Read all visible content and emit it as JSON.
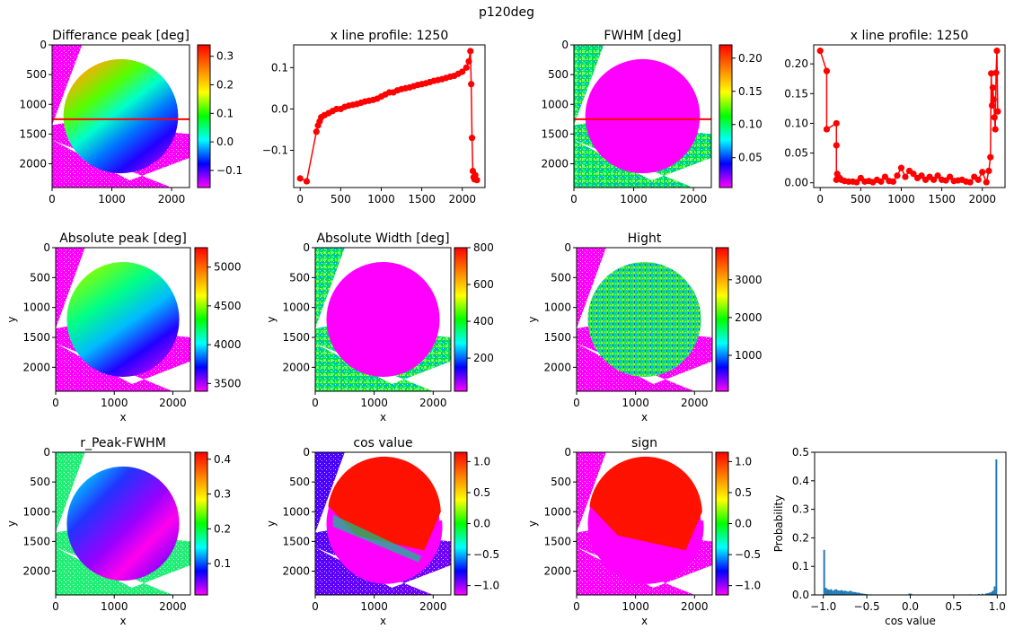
{
  "suptitle": "p120deg",
  "chart_data": [
    {
      "type": "heatmap",
      "title": "Differance peak [deg]",
      "xlabel": "",
      "ylabel": "",
      "xticks": [
        "0",
        "1000",
        "2000"
      ],
      "yticks": [
        "0",
        "500",
        "1000",
        "1500",
        "2000"
      ],
      "cbar_ticks": [
        "0.3",
        "0.2",
        "0.1",
        "0.0",
        "−0.1"
      ],
      "cbar_range": [
        -0.16,
        0.34
      ],
      "marker_row": 1250
    },
    {
      "type": "line",
      "title": "x line profile: 1250",
      "xlabel": "",
      "ylabel": "",
      "xticks": [
        "0",
        "500",
        "1000",
        "1500",
        "2000"
      ],
      "yticks": [
        "0.1",
        "0.0",
        "−0.1"
      ],
      "xlim": [
        -80,
        2280
      ],
      "ylim": [
        -0.19,
        0.155
      ],
      "x": [
        0,
        80,
        200,
        220,
        240,
        260,
        300,
        350,
        400,
        450,
        500,
        550,
        600,
        650,
        700,
        750,
        800,
        850,
        900,
        950,
        1000,
        1050,
        1100,
        1150,
        1200,
        1250,
        1300,
        1350,
        1400,
        1450,
        1500,
        1550,
        1600,
        1650,
        1700,
        1750,
        1800,
        1850,
        1900,
        1950,
        2000,
        2050,
        2080,
        2100,
        2110,
        2120,
        2130,
        2140,
        2150,
        2160,
        2180
      ],
      "y": [
        -0.168,
        -0.175,
        -0.055,
        -0.04,
        -0.03,
        -0.02,
        -0.015,
        -0.01,
        -0.005,
        0.0,
        0.0,
        0.005,
        0.008,
        0.01,
        0.012,
        0.015,
        0.018,
        0.02,
        0.022,
        0.025,
        0.03,
        0.035,
        0.04,
        0.04,
        0.045,
        0.048,
        0.05,
        0.052,
        0.055,
        0.058,
        0.06,
        0.062,
        0.065,
        0.068,
        0.07,
        0.072,
        0.075,
        0.078,
        0.08,
        0.085,
        0.09,
        0.1,
        0.115,
        0.14,
        0.06,
        -0.07,
        -0.15,
        -0.165,
        -0.17,
        -0.16,
        -0.172
      ]
    },
    {
      "type": "heatmap",
      "title": "FWHM [deg]",
      "xlabel": "",
      "ylabel": "",
      "xticks": [
        "0",
        "1000",
        "2000"
      ],
      "yticks": [
        "0",
        "500",
        "1000",
        "1500",
        "2000"
      ],
      "cbar_ticks": [
        "0.20",
        "0.15",
        "0.10",
        "0.05"
      ],
      "cbar_range": [
        0.005,
        0.22
      ],
      "marker_row": 1250
    },
    {
      "type": "scatter",
      "title": "x line profile: 1250",
      "xlabel": "",
      "ylabel": "",
      "xticks": [
        "0",
        "500",
        "1000",
        "1500",
        "2000"
      ],
      "yticks": [
        "0.20",
        "0.15",
        "0.10",
        "0.05",
        "0.00"
      ],
      "xlim": [
        -80,
        2280
      ],
      "ylim": [
        -0.008,
        0.232
      ],
      "x": [
        0,
        80,
        80,
        200,
        200,
        200,
        210,
        220,
        240,
        260,
        300,
        350,
        400,
        450,
        500,
        550,
        600,
        650,
        700,
        750,
        800,
        850,
        900,
        950,
        1000,
        1050,
        1100,
        1150,
        1200,
        1250,
        1300,
        1350,
        1400,
        1450,
        1500,
        1550,
        1600,
        1650,
        1700,
        1750,
        1800,
        1850,
        1900,
        1950,
        2000,
        2050,
        2080,
        2100,
        2110,
        2120,
        2130,
        2140,
        2150,
        2160,
        2170,
        2180,
        2190
      ],
      "y": [
        0.222,
        0.188,
        0.09,
        0.1,
        0.063,
        0.005,
        0.015,
        0.01,
        0.008,
        0.005,
        0.003,
        0.002,
        0.002,
        0.001,
        0.008,
        0.002,
        0.003,
        0.001,
        0.005,
        0.002,
        0.01,
        0.003,
        0.002,
        0.012,
        0.025,
        0.01,
        0.02,
        0.015,
        0.008,
        0.012,
        0.005,
        0.01,
        0.005,
        0.012,
        0.005,
        0.004,
        0.01,
        0.003,
        0.004,
        0.005,
        0.002,
        0.001,
        0.01,
        0.005,
        0.018,
        0.001,
        0.02,
        0.043,
        0.184,
        0.13,
        0.16,
        0.14,
        0.11,
        0.09,
        0.185,
        0.222,
        0.12
      ]
    },
    {
      "type": "heatmap",
      "title": "Absolute peak [deg]",
      "xlabel": "x",
      "ylabel": "y",
      "xticks": [
        "0",
        "1000",
        "2000"
      ],
      "yticks": [
        "0",
        "500",
        "1000",
        "1500",
        "2000"
      ],
      "cbar_ticks": [
        "5000",
        "4500",
        "4000",
        "3500"
      ],
      "cbar_range": [
        3400,
        5250
      ]
    },
    {
      "type": "heatmap",
      "title": "Absolute Width [deg]",
      "xlabel": "x",
      "ylabel": "y",
      "xticks": [
        "0",
        "1000",
        "2000"
      ],
      "yticks": [
        "0",
        "500",
        "1000",
        "1500",
        "2000"
      ],
      "cbar_ticks": [
        "800",
        "600",
        "400",
        "200"
      ],
      "cbar_range": [
        20,
        800
      ]
    },
    {
      "type": "heatmap",
      "title": "Hight",
      "xlabel": "x",
      "ylabel": "y",
      "xticks": [
        "0",
        "1000",
        "2000"
      ],
      "yticks": [
        "0",
        "500",
        "1000",
        "1500",
        "2000"
      ],
      "cbar_ticks": [
        "3000",
        "2000",
        "1000"
      ],
      "cbar_range": [
        50,
        3850
      ]
    },
    {
      "type": "heatmap",
      "title": "r_Peak-FWHM",
      "xlabel": "x",
      "ylabel": "y",
      "xticks": [
        "0",
        "1000",
        "2000"
      ],
      "yticks": [
        "0",
        "500",
        "1000",
        "1500",
        "2000"
      ],
      "cbar_ticks": [
        "0.4",
        "0.3",
        "0.2",
        "0.1"
      ],
      "cbar_range": [
        0.01,
        0.42
      ]
    },
    {
      "type": "heatmap",
      "title": "cos value",
      "xlabel": "x",
      "ylabel": "y",
      "xticks": [
        "0",
        "1000",
        "2000"
      ],
      "yticks": [
        "0",
        "500",
        "1000",
        "1500",
        "2000"
      ],
      "cbar_ticks": [
        "1.0",
        "0.5",
        "0.0",
        "−0.5",
        "−1.0"
      ],
      "cbar_range": [
        -1.15,
        1.15
      ]
    },
    {
      "type": "heatmap",
      "title": "sign",
      "xlabel": "x",
      "ylabel": "y",
      "xticks": [
        "0",
        "1000",
        "2000"
      ],
      "yticks": [
        "0",
        "500",
        "1000",
        "1500",
        "2000"
      ],
      "cbar_ticks": [
        "1.0",
        "0.5",
        "0.0",
        "−0.5",
        "−1.0"
      ],
      "cbar_range": [
        -1.15,
        1.15
      ]
    },
    {
      "type": "bar",
      "title": "",
      "xlabel": "cos value",
      "ylabel": "Probability",
      "xticks": [
        "−1.0",
        "−0.5",
        "0.0",
        "0.5",
        "1.0"
      ],
      "yticks": [
        "0.5",
        "0.4",
        "0.3",
        "0.2",
        "0.1",
        "0.0"
      ],
      "xlim": [
        -1.1,
        1.1
      ],
      "ylim": [
        0,
        0.5
      ],
      "bin_width": 0.02,
      "x": [
        -0.99,
        -0.97,
        -0.95,
        -0.93,
        -0.91,
        -0.89,
        -0.87,
        -0.85,
        -0.83,
        -0.81,
        -0.79,
        -0.77,
        -0.75,
        -0.73,
        -0.71,
        -0.69,
        -0.67,
        -0.65,
        -0.63,
        -0.61,
        -0.59,
        -0.57,
        -0.55,
        -0.53,
        -0.51,
        -0.49,
        -0.45,
        -0.41,
        -0.01,
        0.01,
        0.49,
        0.69,
        0.79,
        0.83,
        0.87,
        0.89,
        0.91,
        0.93,
        0.95,
        0.97,
        0.99
      ],
      "values": [
        0.158,
        0.025,
        0.02,
        0.018,
        0.02,
        0.015,
        0.018,
        0.02,
        0.016,
        0.015,
        0.017,
        0.014,
        0.015,
        0.013,
        0.012,
        0.015,
        0.012,
        0.01,
        0.01,
        0.008,
        0.008,
        0.006,
        0.005,
        0.004,
        0.003,
        0.002,
        0.002,
        0.001,
        0.005,
        0.004,
        0.002,
        0.002,
        0.003,
        0.004,
        0.005,
        0.006,
        0.008,
        0.01,
        0.015,
        0.03,
        0.475
      ]
    }
  ]
}
